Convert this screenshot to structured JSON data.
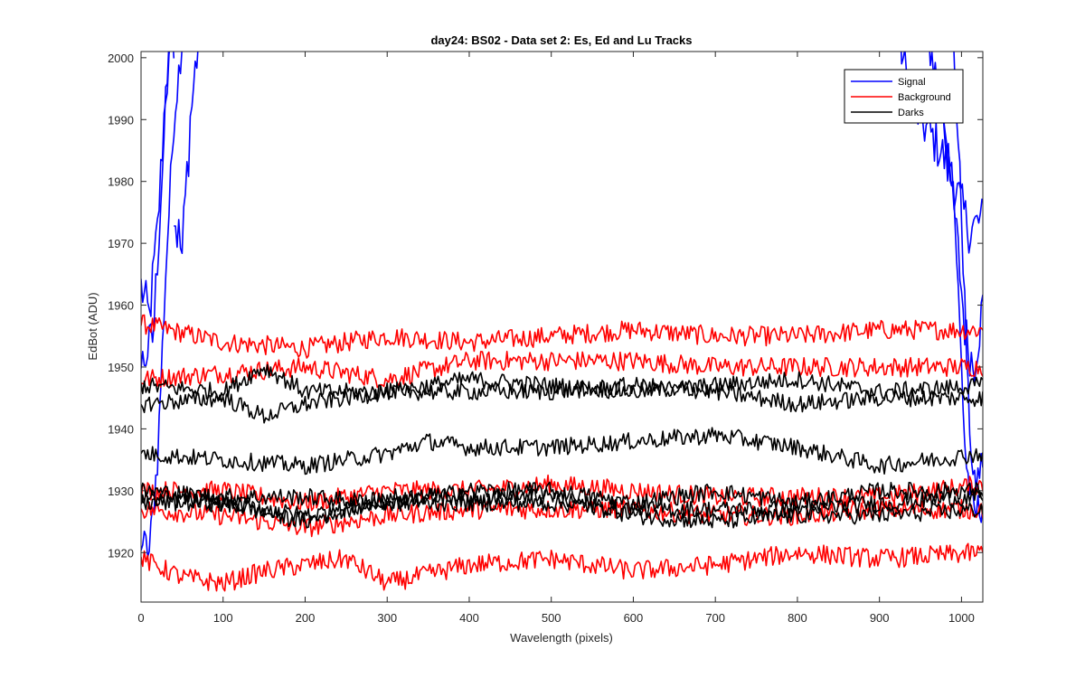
{
  "chart_data": {
    "type": "line",
    "title": "day24: BS02 - Data set 2: Es, Ed and Lu Tracks",
    "xlabel": "Wavelength (pixels)",
    "ylabel": "EdBot (ADU)",
    "xlim": [
      0,
      1026
    ],
    "ylim": [
      1912,
      2001
    ],
    "xticks": [
      0,
      100,
      200,
      300,
      400,
      500,
      600,
      700,
      800,
      900,
      1000
    ],
    "yticks": [
      1920,
      1930,
      1940,
      1950,
      1960,
      1970,
      1980,
      1990,
      2000
    ],
    "grid": false,
    "legend_position": "top-right",
    "legend": [
      {
        "name": "Signal",
        "color": "#0000ff"
      },
      {
        "name": "Background",
        "color": "#ff0000"
      },
      {
        "name": "Darks",
        "color": "#000000"
      }
    ],
    "series": [
      {
        "group": "Signal",
        "color": "#0000ff",
        "noise": 4,
        "points": [
          [
            0,
            1963
          ],
          [
            10,
            1958
          ],
          [
            20,
            1972
          ],
          [
            30,
            1995
          ],
          [
            40,
            2003
          ]
        ]
      },
      {
        "group": "Signal",
        "color": "#0000ff",
        "noise": 4,
        "points": [
          [
            0,
            1950
          ],
          [
            15,
            1955
          ],
          [
            25,
            1980
          ],
          [
            35,
            2003
          ]
        ]
      },
      {
        "group": "Signal",
        "color": "#0000ff",
        "noise": 3,
        "points": [
          [
            0,
            1922
          ],
          [
            10,
            1920
          ],
          [
            20,
            1935
          ],
          [
            30,
            1965
          ],
          [
            40,
            1990
          ],
          [
            50,
            2003
          ]
        ]
      },
      {
        "group": "Signal",
        "color": "#0000ff",
        "noise": 5,
        "points": [
          [
            40,
            1975
          ],
          [
            50,
            1968
          ],
          [
            60,
            1990
          ],
          [
            70,
            2003
          ]
        ]
      },
      {
        "group": "Signal",
        "color": "#0000ff",
        "noise": 4,
        "points": [
          [
            925,
            2003
          ],
          [
            935,
            1995
          ],
          [
            950,
            1990
          ],
          [
            975,
            1985
          ],
          [
            995,
            1978
          ],
          [
            1010,
            1972
          ],
          [
            1026,
            1974
          ]
        ]
      },
      {
        "group": "Signal",
        "color": "#0000ff",
        "noise": 4,
        "points": [
          [
            960,
            2003
          ],
          [
            980,
            1990
          ],
          [
            995,
            1970
          ],
          [
            1005,
            1955
          ],
          [
            1015,
            1950
          ],
          [
            1026,
            1960
          ]
        ]
      },
      {
        "group": "Signal",
        "color": "#0000ff",
        "noise": 3,
        "points": [
          [
            990,
            2003
          ],
          [
            1000,
            1975
          ],
          [
            1008,
            1945
          ],
          [
            1015,
            1930
          ],
          [
            1026,
            1935
          ]
        ]
      },
      {
        "group": "Signal",
        "color": "#0000ff",
        "noise": 3,
        "points": [
          [
            970,
            1995
          ],
          [
            990,
            1980
          ],
          [
            1005,
            1935
          ],
          [
            1015,
            1926
          ],
          [
            1026,
            1928
          ]
        ]
      },
      {
        "group": "Background",
        "color": "#ff0000",
        "noise": 1.6,
        "points": [
          [
            0,
            1957
          ],
          [
            100,
            1954
          ],
          [
            200,
            1953
          ],
          [
            300,
            1955
          ],
          [
            400,
            1954
          ],
          [
            500,
            1955
          ],
          [
            600,
            1956
          ],
          [
            700,
            1955
          ],
          [
            800,
            1955
          ],
          [
            900,
            1956
          ],
          [
            1026,
            1956
          ]
        ]
      },
      {
        "group": "Background",
        "color": "#ff0000",
        "noise": 1.6,
        "points": [
          [
            0,
            1948
          ],
          [
            100,
            1949
          ],
          [
            200,
            1950
          ],
          [
            300,
            1948
          ],
          [
            400,
            1951
          ],
          [
            500,
            1951
          ],
          [
            600,
            1951
          ],
          [
            700,
            1950
          ],
          [
            800,
            1950
          ],
          [
            900,
            1950
          ],
          [
            1026,
            1950
          ]
        ]
      },
      {
        "group": "Background",
        "color": "#ff0000",
        "noise": 1.6,
        "points": [
          [
            0,
            1930
          ],
          [
            100,
            1930
          ],
          [
            200,
            1928
          ],
          [
            300,
            1930
          ],
          [
            400,
            1930
          ],
          [
            500,
            1931
          ],
          [
            600,
            1930
          ],
          [
            700,
            1929
          ],
          [
            800,
            1929
          ],
          [
            900,
            1929
          ],
          [
            1026,
            1931
          ]
        ]
      },
      {
        "group": "Background",
        "color": "#ff0000",
        "noise": 1.6,
        "points": [
          [
            0,
            1927
          ],
          [
            100,
            1926
          ],
          [
            200,
            1924
          ],
          [
            300,
            1926
          ],
          [
            400,
            1927
          ],
          [
            500,
            1927
          ],
          [
            600,
            1927
          ],
          [
            700,
            1926
          ],
          [
            800,
            1926
          ],
          [
            900,
            1927
          ],
          [
            1026,
            1927
          ]
        ]
      },
      {
        "group": "Background",
        "color": "#ff0000",
        "noise": 1.6,
        "points": [
          [
            0,
            1919
          ],
          [
            50,
            1916
          ],
          [
            100,
            1915
          ],
          [
            150,
            1917
          ],
          [
            200,
            1918
          ],
          [
            250,
            1919
          ],
          [
            300,
            1915
          ],
          [
            400,
            1918
          ],
          [
            500,
            1919
          ],
          [
            600,
            1917
          ],
          [
            700,
            1918
          ],
          [
            800,
            1920
          ],
          [
            900,
            1919
          ],
          [
            1026,
            1920
          ]
        ]
      },
      {
        "group": "Darks",
        "color": "#000000",
        "noise": 1.4,
        "points": [
          [
            0,
            1947
          ],
          [
            100,
            1946
          ],
          [
            150,
            1950
          ],
          [
            200,
            1946
          ],
          [
            300,
            1946
          ],
          [
            400,
            1948
          ],
          [
            500,
            1947
          ],
          [
            600,
            1946
          ],
          [
            700,
            1947
          ],
          [
            800,
            1948
          ],
          [
            900,
            1946
          ],
          [
            1026,
            1947
          ]
        ]
      },
      {
        "group": "Darks",
        "color": "#000000",
        "noise": 1.4,
        "points": [
          [
            0,
            1944
          ],
          [
            100,
            1945
          ],
          [
            150,
            1942
          ],
          [
            200,
            1944
          ],
          [
            300,
            1946
          ],
          [
            400,
            1946
          ],
          [
            500,
            1946
          ],
          [
            600,
            1947
          ],
          [
            700,
            1946
          ],
          [
            800,
            1944
          ],
          [
            900,
            1945
          ],
          [
            1026,
            1945
          ]
        ]
      },
      {
        "group": "Darks",
        "color": "#000000",
        "noise": 1.4,
        "points": [
          [
            0,
            1936
          ],
          [
            100,
            1935
          ],
          [
            200,
            1934
          ],
          [
            300,
            1936
          ],
          [
            350,
            1938
          ],
          [
            400,
            1937
          ],
          [
            500,
            1937
          ],
          [
            600,
            1938
          ],
          [
            700,
            1939
          ],
          [
            800,
            1937
          ],
          [
            900,
            1934
          ],
          [
            1026,
            1936
          ]
        ]
      },
      {
        "group": "Darks",
        "color": "#000000",
        "noise": 1.4,
        "points": [
          [
            0,
            1930
          ],
          [
            100,
            1929
          ],
          [
            200,
            1929
          ],
          [
            300,
            1928
          ],
          [
            400,
            1930
          ],
          [
            500,
            1930
          ],
          [
            600,
            1928
          ],
          [
            700,
            1930
          ],
          [
            800,
            1928
          ],
          [
            900,
            1930
          ],
          [
            1026,
            1930
          ]
        ]
      },
      {
        "group": "Darks",
        "color": "#000000",
        "noise": 1.4,
        "points": [
          [
            0,
            1929
          ],
          [
            100,
            1928
          ],
          [
            200,
            1926
          ],
          [
            300,
            1928
          ],
          [
            400,
            1928
          ],
          [
            500,
            1928
          ],
          [
            600,
            1927
          ],
          [
            700,
            1927
          ],
          [
            800,
            1927
          ],
          [
            900,
            1928
          ],
          [
            1026,
            1929
          ]
        ]
      },
      {
        "group": "Darks",
        "color": "#000000",
        "noise": 1.4,
        "points": [
          [
            0,
            1928
          ],
          [
            100,
            1928
          ],
          [
            200,
            1925
          ],
          [
            300,
            1929
          ],
          [
            400,
            1929
          ],
          [
            500,
            1929
          ],
          [
            600,
            1926
          ],
          [
            700,
            1925
          ],
          [
            800,
            1926
          ],
          [
            900,
            1926
          ],
          [
            1026,
            1927
          ]
        ]
      }
    ]
  }
}
